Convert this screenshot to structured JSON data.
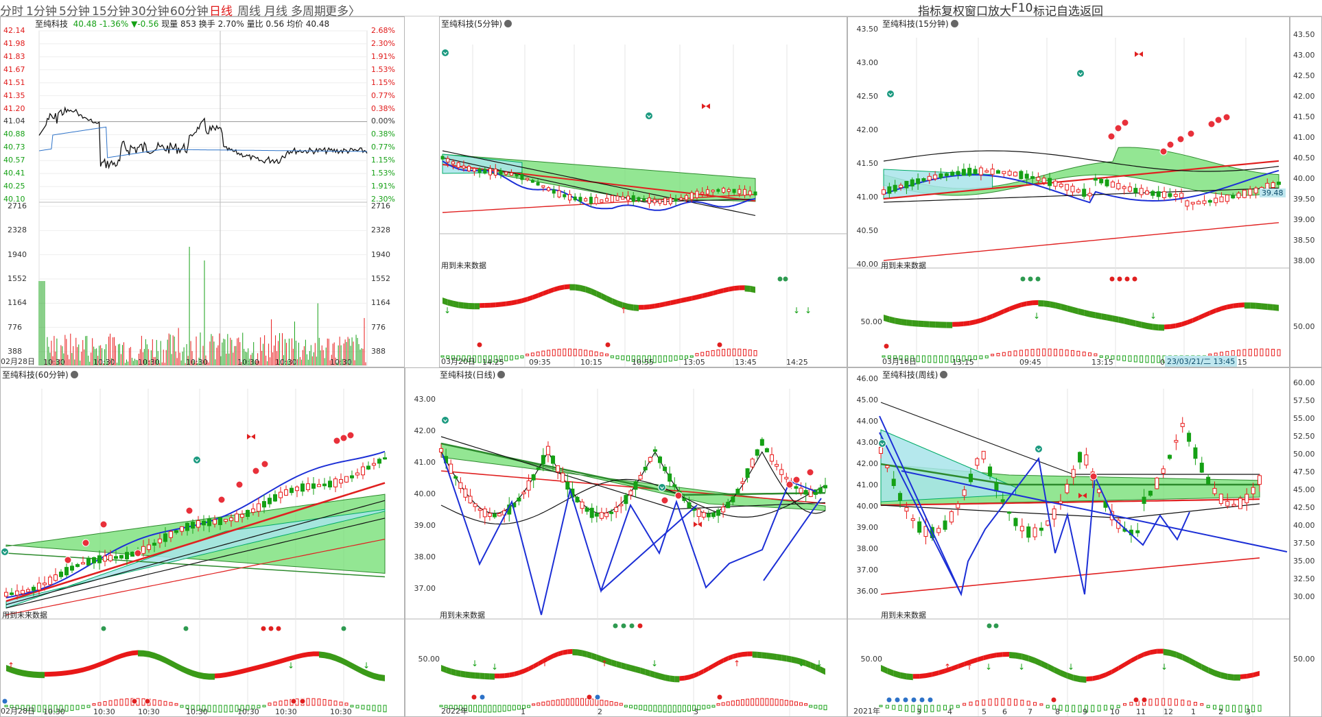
{
  "periods": [
    {
      "label": "分时",
      "active": false
    },
    {
      "label": "1分钟",
      "active": false
    },
    {
      "label": "5分钟",
      "active": false
    },
    {
      "label": "15分钟",
      "active": false
    },
    {
      "label": "30分钟",
      "active": false
    },
    {
      "label": "60分钟",
      "active": false
    },
    {
      "label": "日线",
      "active": true
    },
    {
      "label": "周线",
      "active": false
    },
    {
      "label": "月线",
      "active": false
    },
    {
      "label": "多周期",
      "active": false
    },
    {
      "label": "更多〉",
      "active": false
    }
  ],
  "tools": [
    "指标",
    "复权",
    "窗口",
    "放大",
    "F10",
    "标记",
    "自选",
    "返回"
  ],
  "ts": {
    "name": "至纯科技",
    "price": "40.48",
    "change_pct": "-1.36%",
    "change": "▼-0.56",
    "volume_label": "现量 853",
    "turnover_label": "换手 2.70%",
    "vol_ratio_label": "量比 0.56",
    "avg_label": "均价 40.48",
    "price_ticks": [
      "42.14",
      "41.98",
      "41.83",
      "41.67",
      "41.51",
      "41.35",
      "41.20",
      "41.04",
      "40.88",
      "40.73",
      "40.57",
      "40.41",
      "40.25",
      "40.10"
    ],
    "pct_ticks": [
      "2.68%",
      "2.30%",
      "1.91%",
      "1.53%",
      "1.15%",
      "0.77%",
      "0.38%",
      "0.00%",
      "0.38%",
      "0.77%",
      "1.15%",
      "1.53%",
      "1.91%",
      "2.30%"
    ],
    "vol_ticks": [
      "2716",
      "2328",
      "1940",
      "1552",
      "1164",
      "776",
      "388"
    ],
    "times": [
      "02月28日",
      "10:30",
      "10:30",
      "10:30",
      "10:30",
      "10:30",
      "10:30",
      "10:30"
    ]
  },
  "p5": {
    "title": "至纯科技(5分钟)",
    "note": "用到未来数据",
    "times": [
      "03月20日",
      "14:25",
      "09:35",
      "10:15",
      "10:55",
      "13:05",
      "13:45",
      "14:25"
    ]
  },
  "p15": {
    "title": "至纯科技(15分钟)",
    "note": "用到未来数据",
    "y_ticks": [
      "43.50",
      "43.00",
      "42.50",
      "42.00",
      "41.50",
      "41.00",
      "40.50",
      "40.00"
    ],
    "ind_tick": "50.00",
    "times": [
      "03月16日",
      "13:15",
      "09:45",
      "13:15",
      "09:45",
      "13:15"
    ],
    "cursor_label": "23/03/21/二 13:45"
  },
  "p60": {
    "title": "至纯科技(60分钟)",
    "note": "用到未来数据",
    "times": [
      "02月28日",
      "10:30",
      "10:30",
      "10:30",
      "10:30",
      "10:30",
      "10:30",
      "10:30"
    ]
  },
  "pd": {
    "title": "至纯科技(日线)",
    "note": "用到未来数据",
    "y_ticks": [
      "43.00",
      "42.00",
      "41.00",
      "40.00",
      "39.00",
      "38.00",
      "37.00"
    ],
    "ind_tick": "50.00",
    "times": [
      "2022年",
      "1",
      "2",
      "3"
    ]
  },
  "pw": {
    "title": "至纯科技(周线)",
    "note": "用到未来数据",
    "y_ticks": [
      "46.00",
      "45.00",
      "44.00",
      "43.00",
      "42.00",
      "41.00",
      "40.00",
      "39.00",
      "38.00",
      "37.00",
      "36.00"
    ],
    "ind_tick": "50.00",
    "times": [
      "2021年",
      "3",
      "4",
      "5",
      "6",
      "7",
      "8",
      "9",
      "10",
      "11",
      "12",
      "1",
      "2",
      "3"
    ]
  },
  "right_axis_top": {
    "ticks": [
      "43.50",
      "43.00",
      "42.50",
      "42.00",
      "41.50",
      "41.00",
      "40.50",
      "40.00",
      "39.50",
      "39.00",
      "38.50",
      "38.00"
    ],
    "badge": "39.48",
    "ind_tick": "50.00"
  },
  "right_axis_bottom": {
    "ticks": [
      "60.00",
      "57.50",
      "55.00",
      "52.50",
      "50.00",
      "47.50",
      "45.00",
      "42.50",
      "40.00",
      "37.50",
      "35.00",
      "32.50",
      "30.00"
    ],
    "ind_tick": "50.00"
  },
  "colors": {
    "up": "#e81818",
    "down": "#15a015",
    "ma_blue": "#1c2fd6",
    "band_green": "#6fdd6f",
    "band_cyan": "#a8e4ea"
  }
}
